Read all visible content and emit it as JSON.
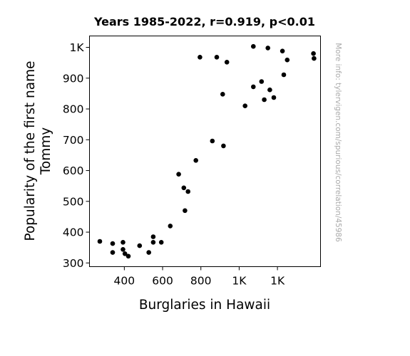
{
  "chart_data": {
    "type": "scatter",
    "title": "Years 1985-2022, r=0.919, p<0.01",
    "xlabel": "Burglaries in Hawaii",
    "ylabel": [
      "Popularity of the first name",
      "Tommy"
    ],
    "watermark": "More info: tylervigen.com/spurious/correlation/45986",
    "xlim": [
      218,
      1425
    ],
    "ylim": [
      288,
      1037
    ],
    "grid": false,
    "legend": "none",
    "x_ticks": [
      {
        "value": 400,
        "label": "400"
      },
      {
        "value": 600,
        "label": "600"
      },
      {
        "value": 800,
        "label": "800"
      },
      {
        "value": 1000,
        "label": "1K"
      },
      {
        "value": 1200,
        "label": "1K"
      }
    ],
    "y_ticks": [
      {
        "value": 300,
        "label": "300"
      },
      {
        "value": 400,
        "label": "400"
      },
      {
        "value": 500,
        "label": "500"
      },
      {
        "value": 600,
        "label": "600"
      },
      {
        "value": 700,
        "label": "700"
      },
      {
        "value": 800,
        "label": "800"
      },
      {
        "value": 900,
        "label": "900"
      },
      {
        "value": 1000,
        "label": "1K"
      }
    ],
    "marker_color": "#000000",
    "points": [
      {
        "x": 272,
        "y": 370
      },
      {
        "x": 339,
        "y": 363
      },
      {
        "x": 339,
        "y": 334
      },
      {
        "x": 393,
        "y": 367
      },
      {
        "x": 393,
        "y": 344
      },
      {
        "x": 403,
        "y": 330
      },
      {
        "x": 421,
        "y": 322
      },
      {
        "x": 480,
        "y": 356
      },
      {
        "x": 528,
        "y": 334
      },
      {
        "x": 551,
        "y": 385
      },
      {
        "x": 551,
        "y": 367
      },
      {
        "x": 593,
        "y": 367
      },
      {
        "x": 640,
        "y": 420
      },
      {
        "x": 684,
        "y": 588
      },
      {
        "x": 711,
        "y": 544
      },
      {
        "x": 717,
        "y": 470
      },
      {
        "x": 733,
        "y": 532
      },
      {
        "x": 774,
        "y": 633
      },
      {
        "x": 795,
        "y": 968
      },
      {
        "x": 860,
        "y": 696
      },
      {
        "x": 883,
        "y": 968
      },
      {
        "x": 914,
        "y": 848
      },
      {
        "x": 918,
        "y": 680
      },
      {
        "x": 936,
        "y": 952
      },
      {
        "x": 1031,
        "y": 810
      },
      {
        "x": 1074,
        "y": 1003
      },
      {
        "x": 1074,
        "y": 872
      },
      {
        "x": 1117,
        "y": 889
      },
      {
        "x": 1131,
        "y": 830
      },
      {
        "x": 1150,
        "y": 998
      },
      {
        "x": 1160,
        "y": 862
      },
      {
        "x": 1181,
        "y": 837
      },
      {
        "x": 1226,
        "y": 988
      },
      {
        "x": 1233,
        "y": 911
      },
      {
        "x": 1251,
        "y": 959
      },
      {
        "x": 1388,
        "y": 980
      },
      {
        "x": 1391,
        "y": 964
      }
    ]
  }
}
